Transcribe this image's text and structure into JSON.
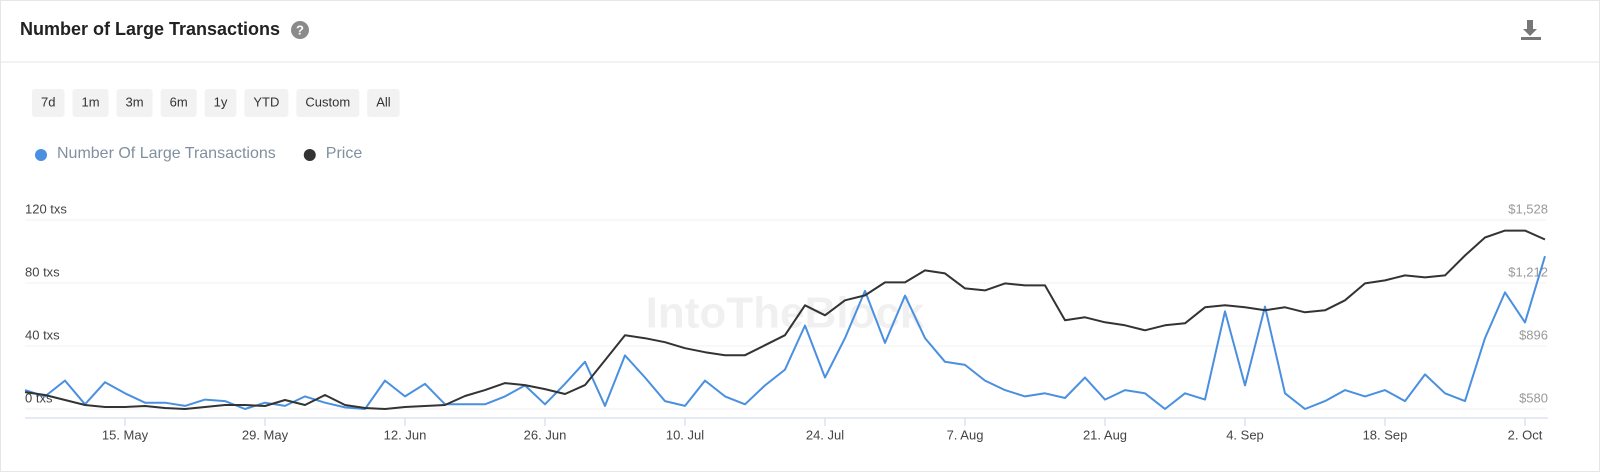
{
  "chart_data": {
    "type": "line",
    "title": "Number of Large Transactions",
    "ranges": [
      "7d",
      "1m",
      "3m",
      "6m",
      "1y",
      "YTD",
      "Custom",
      "All"
    ],
    "watermark": "IntoTheBlock",
    "categories": [
      null,
      null,
      null,
      null,
      null,
      "15. May",
      null,
      null,
      null,
      null,
      null,
      null,
      "29. May",
      null,
      null,
      null,
      null,
      null,
      null,
      "12. Jun",
      null,
      null,
      null,
      null,
      null,
      null,
      "26. Jun",
      null,
      null,
      null,
      null,
      null,
      null,
      "10. Jul",
      null,
      null,
      null,
      null,
      null,
      null,
      "24. Jul",
      null,
      null,
      null,
      null,
      null,
      null,
      "7. Aug",
      null,
      null,
      null,
      null,
      null,
      null,
      "21. Aug",
      null,
      null,
      null,
      null,
      null,
      null,
      "4. Sep",
      null,
      null,
      null,
      null,
      null,
      null,
      "18. Sep",
      null,
      null,
      null,
      null,
      null,
      null,
      "2. Oct",
      null
    ],
    "series": [
      {
        "name": "Number Of Large Transactions",
        "color": "#4a8fe0",
        "axis": "y",
        "values": [
          12,
          8,
          18,
          3,
          17,
          10,
          4,
          4,
          2,
          6,
          5,
          0,
          4,
          2,
          8,
          4,
          1,
          0,
          18,
          8,
          16,
          3,
          3,
          3,
          8,
          15,
          3,
          16,
          30,
          2,
          34,
          20,
          5,
          2,
          18,
          8,
          3,
          15,
          25,
          53,
          20,
          45,
          75,
          42,
          72,
          45,
          30,
          28,
          18,
          12,
          8,
          10,
          7,
          20,
          6,
          12,
          10,
          0,
          10,
          6,
          62,
          15,
          65,
          10,
          0,
          5,
          12,
          8,
          12,
          5,
          22,
          10,
          5,
          45,
          74,
          55,
          97
        ]
      },
      {
        "name": "Price",
        "color": "#333333",
        "axis": "y2",
        "values": [
          665,
          650,
          625,
          600,
          590,
          590,
          595,
          585,
          580,
          590,
          600,
          600,
          595,
          625,
          600,
          650,
          600,
          585,
          580,
          590,
          595,
          600,
          645,
          675,
          710,
          700,
          680,
          655,
          700,
          825,
          950,
          935,
          915,
          885,
          865,
          850,
          850,
          900,
          950,
          1100,
          1050,
          1125,
          1150,
          1215,
          1215,
          1275,
          1260,
          1185,
          1175,
          1210,
          1200,
          1200,
          1025,
          1040,
          1015,
          1000,
          975,
          1000,
          1010,
          1090,
          1100,
          1090,
          1075,
          1090,
          1065,
          1075,
          1125,
          1210,
          1225,
          1250,
          1240,
          1250,
          1350,
          1440,
          1475,
          1475,
          1430
        ]
      }
    ],
    "ylim": [
      0,
      120
    ],
    "yticks": [
      {
        "value": 0,
        "label": "0 txs"
      },
      {
        "value": 40,
        "label": "40 txs"
      },
      {
        "value": 80,
        "label": "80 txs"
      },
      {
        "value": 120,
        "label": "120 txs"
      }
    ],
    "y2lim": [
      580,
      1528
    ],
    "y2ticks": [
      {
        "value": 580,
        "label": "$580"
      },
      {
        "value": 896,
        "label": "$896"
      },
      {
        "value": 1212,
        "label": "$1,212"
      },
      {
        "value": 1528,
        "label": "$1,528"
      }
    ],
    "grid": true
  }
}
